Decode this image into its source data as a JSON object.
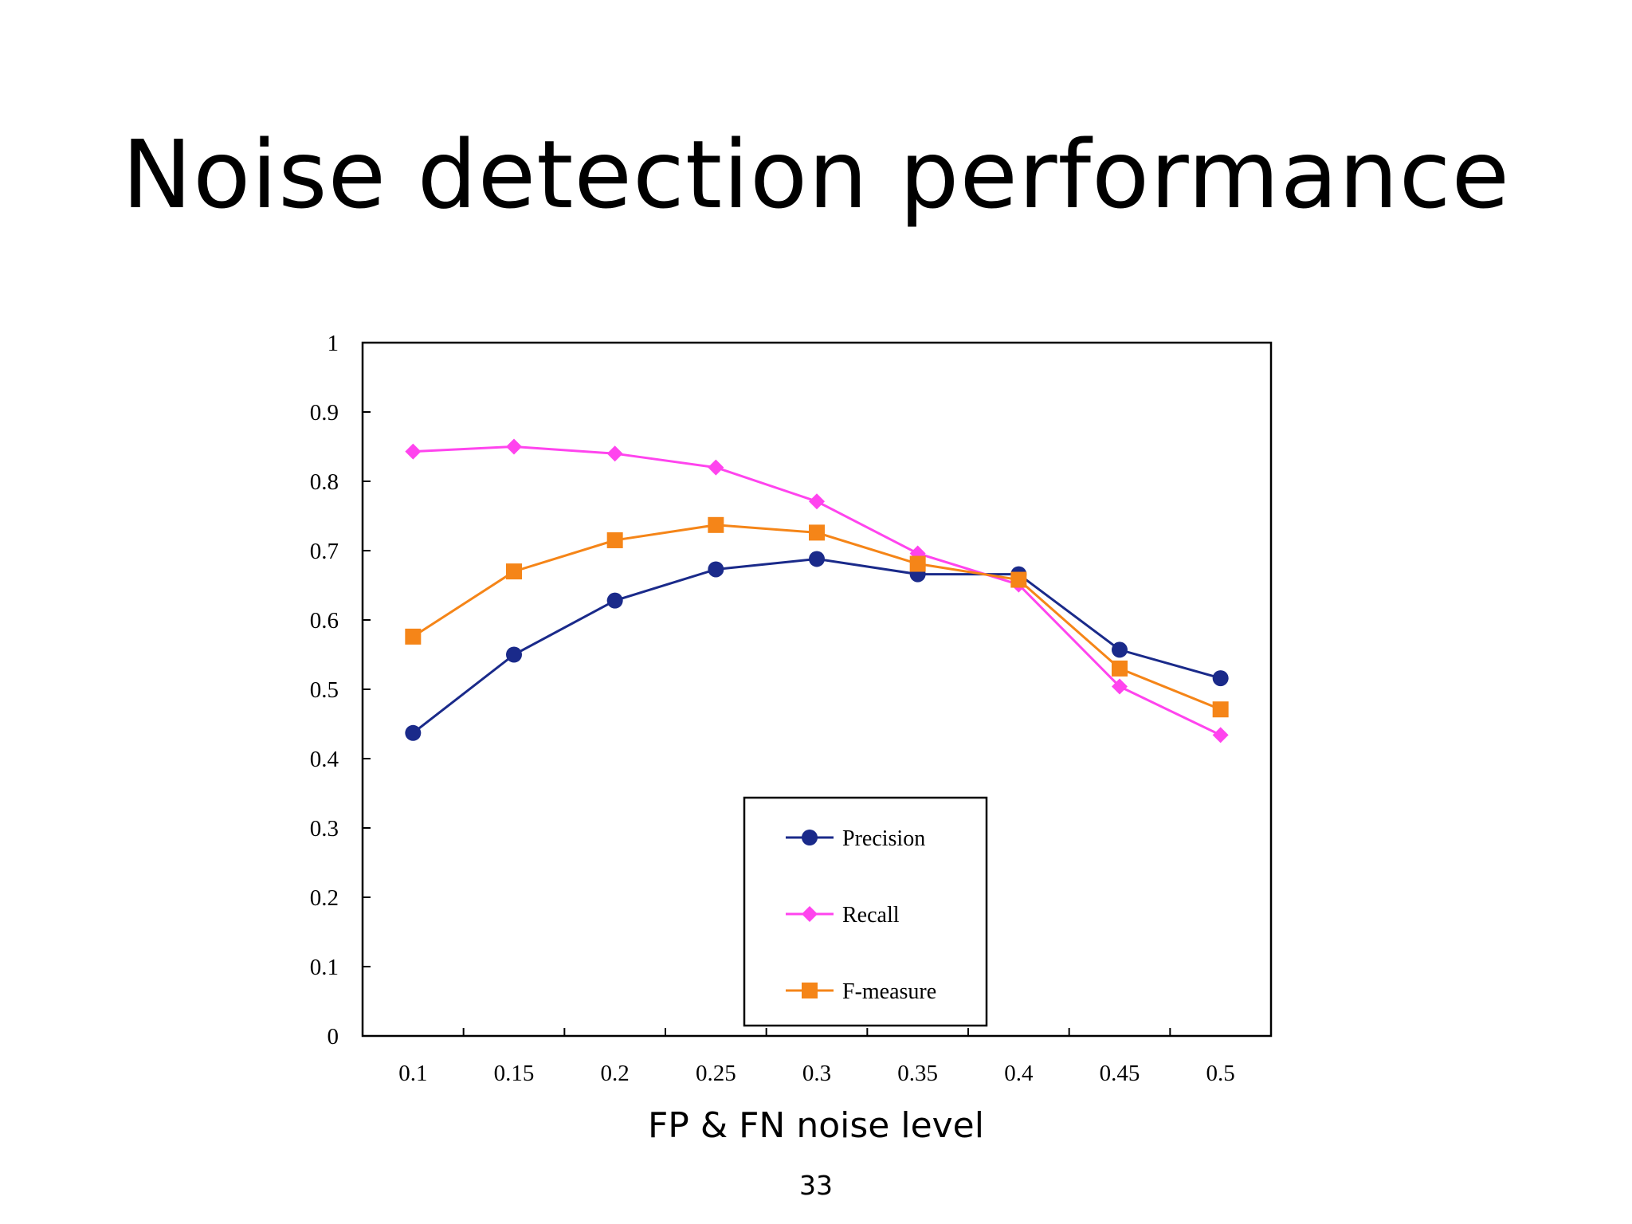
{
  "slide": {
    "title": "Noise detection performance",
    "page_number": "33"
  },
  "chart_data": {
    "type": "line",
    "title": "",
    "xlabel": "FP & FN noise level",
    "ylabel": "",
    "categories": [
      "0.1",
      "0.15",
      "0.2",
      "0.25",
      "0.3",
      "0.35",
      "0.4",
      "0.45",
      "0.5"
    ],
    "y_ticks": [
      "0",
      "0.1",
      "0.2",
      "0.3",
      "0.4",
      "0.5",
      "0.6",
      "0.7",
      "0.8",
      "0.9",
      "1"
    ],
    "ylim": [
      0,
      1
    ],
    "grid": false,
    "legend_position": "inside-bottom-center",
    "series": [
      {
        "name": "Precision",
        "color": "#1a2a8a",
        "marker": "circle",
        "values": [
          0.437,
          0.55,
          0.628,
          0.673,
          0.688,
          0.666,
          0.666,
          0.557,
          0.516
        ]
      },
      {
        "name": "Recall",
        "color": "#ff44ee",
        "marker": "diamond",
        "values": [
          0.843,
          0.85,
          0.84,
          0.82,
          0.771,
          0.696,
          0.651,
          0.504,
          0.434
        ]
      },
      {
        "name": "F-measure",
        "color": "#f58518",
        "marker": "square",
        "values": [
          0.576,
          0.67,
          0.715,
          0.737,
          0.726,
          0.681,
          0.658,
          0.53,
          0.471
        ]
      }
    ]
  }
}
